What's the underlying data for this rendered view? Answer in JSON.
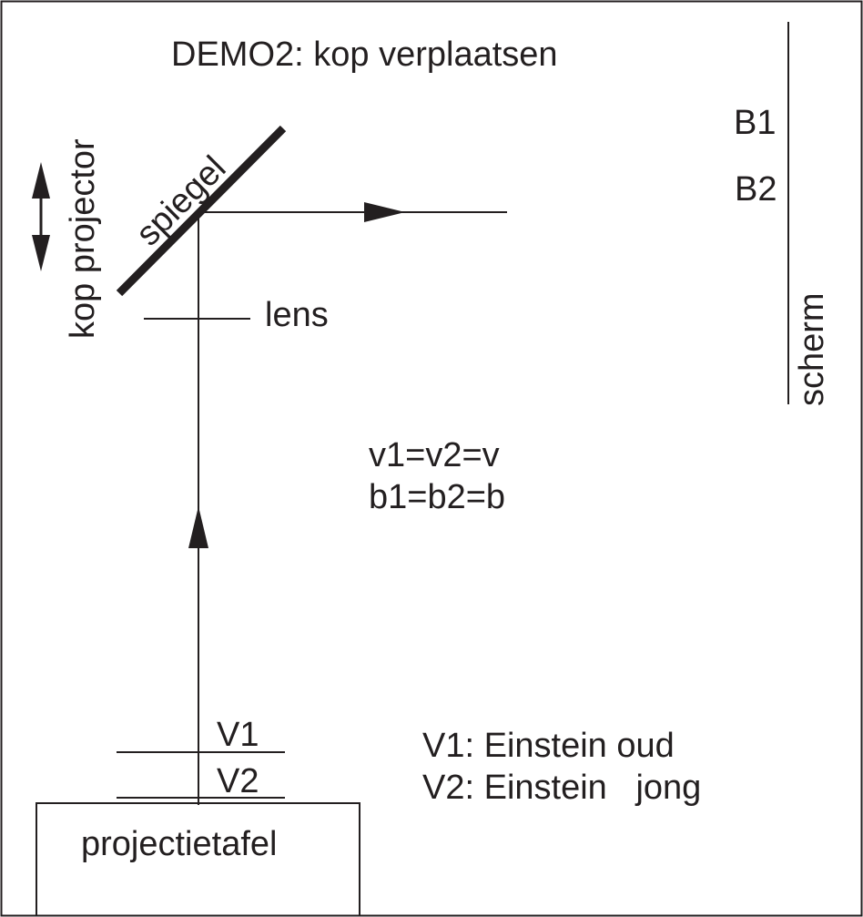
{
  "title": "DEMO2: kop verplaatsen",
  "labels": {
    "head": "kop projector",
    "mirror": "spiegel",
    "lens": "lens",
    "screen": "scherm",
    "image1": "B1",
    "image2": "B2",
    "object1": "V1",
    "object2": "V2",
    "table": "projectietafel"
  },
  "equations": [
    "v1=v2=v",
    "b1=b2=b"
  ],
  "legend": [
    "V1: Einstein oud",
    "V2: Einstein   jong"
  ],
  "colors": {
    "ink": "#231f20",
    "background": "#ffffff"
  }
}
